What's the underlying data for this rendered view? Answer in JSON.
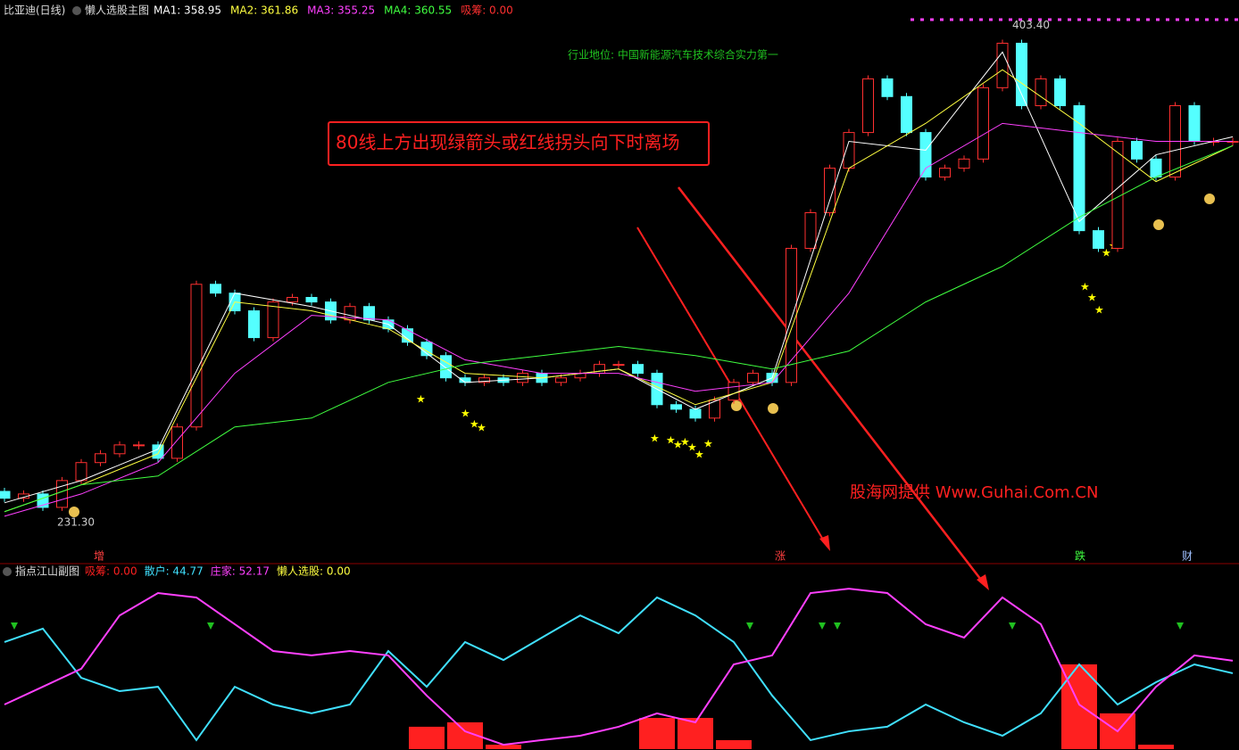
{
  "chart_data": {
    "type": "candlestick",
    "header": {
      "security": "比亚迪(日线)",
      "indicator": "懒人选股主图",
      "signal": "吸筹: 0.00",
      "signal_color": "#ff3030"
    },
    "industry_note": "行业地位: 中国新能源汽车技术综合实力第一",
    "callout": "80线上方出现绿箭头或红线拐头向下时离场",
    "watermark": "股海网提供 Www.Guhai.Com.CN",
    "high_label": {
      "value": 403.4,
      "label": "403.40"
    },
    "low_label": {
      "value": 231.3,
      "label": "231.30"
    },
    "event_labels": [
      "增",
      "涨",
      "跌",
      "财"
    ],
    "ylim": [
      220,
      406
    ],
    "up_color": "#ff3030",
    "down_color": "#54ffff",
    "candles": {
      "open": [
        240.0,
        237.6,
        239.1,
        234.4,
        243.8,
        250.1,
        253.2,
        256.3,
        256.3,
        251.6,
        262.6,
        312.6,
        309.5,
        303.3,
        293.9,
        306.4,
        308.0,
        306.4,
        300.1,
        304.8,
        300.1,
        297.0,
        292.3,
        287.6,
        279.8,
        278.2,
        279.8,
        278.2,
        281.4,
        278.2,
        279.8,
        281.4,
        284.5,
        284.5,
        281.4,
        270.4,
        268.8,
        265.7,
        272.0,
        278.2,
        281.4,
        278.2,
        325.2,
        337.7,
        353.3,
        365.8,
        384.6,
        378.4,
        365.8,
        350.2,
        353.3,
        356.5,
        381.5,
        397.1,
        375.2,
        384.6,
        375.2,
        331.4,
        325.2,
        362.7,
        356.5,
        350.2,
        375.2,
        362.7,
        362.7
      ],
      "close": [
        237.6,
        239.1,
        234.4,
        243.8,
        250.1,
        253.2,
        256.3,
        256.3,
        251.6,
        262.6,
        312.6,
        309.5,
        303.3,
        293.9,
        306.4,
        308.0,
        306.4,
        300.1,
        304.8,
        300.1,
        297.0,
        292.3,
        287.6,
        279.8,
        278.2,
        279.8,
        278.2,
        281.4,
        278.2,
        279.8,
        281.4,
        284.5,
        284.5,
        281.4,
        270.4,
        268.8,
        265.7,
        272.0,
        278.2,
        281.4,
        278.2,
        325.2,
        337.7,
        353.3,
        365.8,
        384.6,
        378.4,
        365.8,
        350.2,
        353.3,
        356.5,
        381.5,
        397.1,
        375.2,
        384.6,
        375.2,
        331.4,
        325.2,
        362.7,
        356.5,
        350.2,
        375.2,
        362.7,
        362.7,
        362.7
      ]
    },
    "ma_x": [
      0,
      4,
      8,
      12,
      16,
      20,
      24,
      28,
      32,
      36,
      40,
      44,
      48,
      52,
      56,
      60,
      64
    ],
    "series": [
      {
        "legend": "MA1: 358.95",
        "color": "#ffffff",
        "values": [
          236.0,
          243.8,
          254.8,
          309.5,
          304.8,
          298.6,
          278.2,
          279.8,
          282.9,
          268.8,
          279.8,
          362.7,
          359.6,
          394.0,
          334.6,
          358.0,
          364.3
        ]
      },
      {
        "legend": "MA2: 361.86",
        "color": "#ffff40",
        "values": [
          232.9,
          242.3,
          253.2,
          306.4,
          303.3,
          297.0,
          281.4,
          279.8,
          282.9,
          270.4,
          278.2,
          353.3,
          369.0,
          387.8,
          369.0,
          348.6,
          361.2
        ]
      },
      {
        "legend": "MA3: 355.25",
        "color": "#ff40ff",
        "values": [
          231.3,
          239.1,
          250.1,
          281.4,
          301.7,
          300.1,
          286.1,
          281.4,
          281.4,
          275.1,
          278.2,
          309.5,
          353.3,
          369.0,
          365.8,
          362.7,
          362.7
        ]
      },
      {
        "legend": "MA4: 360.55",
        "color": "#40ff40",
        "values": [
          232.9,
          242.3,
          245.4,
          262.6,
          265.7,
          278.2,
          284.5,
          287.6,
          290.8,
          287.6,
          282.9,
          289.2,
          306.4,
          318.9,
          336.1,
          350.2,
          361.2
        ]
      }
    ],
    "sub": {
      "title": "指点江山副图",
      "ylim": [
        0,
        100
      ],
      "x": [
        0,
        2,
        4,
        6,
        8,
        10,
        12,
        14,
        16,
        18,
        20,
        22,
        24,
        26,
        28,
        30,
        32,
        34,
        36,
        38,
        40,
        42,
        44,
        46,
        48,
        50,
        52,
        54,
        56,
        58,
        60,
        62,
        64
      ],
      "bars": {
        "legend": "吸筹: 0.00",
        "color": "#ff2020",
        "values": [
          0,
          0,
          0,
          0,
          0,
          0,
          0,
          0,
          0,
          0,
          0,
          13.2,
          15.8,
          2.6,
          0,
          0,
          0,
          18.4,
          18.4,
          5.3,
          0,
          0,
          0,
          0,
          0,
          0,
          0,
          0,
          50.0,
          21.1,
          2.6,
          0,
          0
        ]
      },
      "series": [
        {
          "legend": "散户: 44.77",
          "color": "#40e0ff",
          "values": [
            63.2,
            71.1,
            42.1,
            34.2,
            36.8,
            5.3,
            36.8,
            26.3,
            21.1,
            26.3,
            57.9,
            36.8,
            63.2,
            52.6,
            65.8,
            78.9,
            68.4,
            89.5,
            78.9,
            63.2,
            31.6,
            5.3,
            10.5,
            13.2,
            26.3,
            15.8,
            7.9,
            21.1,
            50.0,
            26.3,
            39.5,
            50.0,
            44.77
          ]
        },
        {
          "legend": "庄家: 52.17",
          "color": "#ff40ff",
          "values": [
            26.3,
            36.8,
            47.4,
            78.9,
            92.1,
            89.5,
            73.7,
            57.9,
            55.3,
            57.9,
            55.3,
            31.6,
            10.5,
            2.6,
            5.3,
            7.9,
            13.2,
            21.1,
            15.8,
            50.0,
            55.3,
            92.1,
            94.7,
            92.1,
            73.7,
            65.8,
            89.5,
            73.7,
            26.3,
            10.5,
            36.8,
            55.3,
            52.17
          ]
        }
      ],
      "extra_legend": {
        "text": "懒人选股: 0.00",
        "color": "#ffff40"
      }
    }
  }
}
